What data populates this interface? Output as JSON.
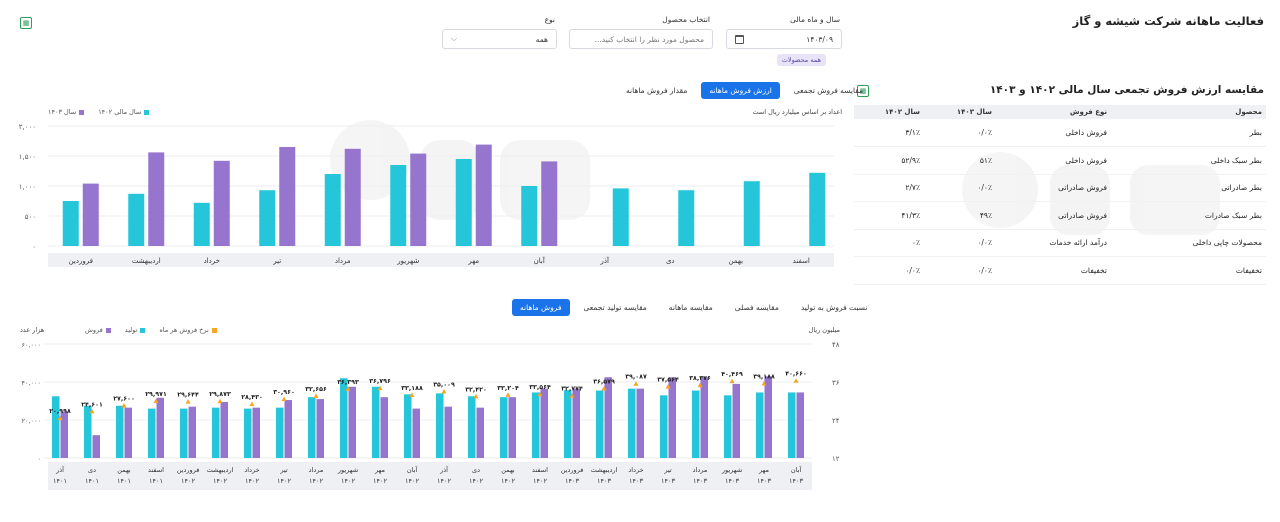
{
  "header": {
    "title": "فعالیت ماهانه شرکت شیشه و گاز"
  },
  "filters": {
    "year_label": "سال و ماه مالی",
    "year_value": "۱۴۰۳/۰۹",
    "product_label": "انتخاب محصول",
    "product_placeholder": "محصول مورد نظر را انتخاب کنید...",
    "type_label": "نوع",
    "type_value": "همه",
    "chip": "همه محصولات"
  },
  "table_section": {
    "title": "مقایسه ارزش فروش تجمعی سال مالی ۱۴۰۲ و ۱۴۰۳",
    "columns": [
      "محصول",
      "نوع فروش",
      "سال ۱۴۰۳",
      "سال ۱۴۰۲"
    ],
    "rows": [
      [
        "بطر",
        "فروش داخلی",
        "۰/۰٪",
        "۳/۱٪"
      ],
      [
        "بطر سبک داخلی",
        "فروش داخلی",
        "۵۱٪",
        "۵۲/۹٪"
      ],
      [
        "بطر صادراتی",
        "فروش صادراتی",
        "۰/۰٪",
        "۲/۷٪"
      ],
      [
        "بطر سبک صادرات",
        "فروش صادراتی",
        "۴۹٪",
        "۴۱/۳٪"
      ],
      [
        "محصولات چاپی داخلی",
        "درآمد ارائه خدمات",
        "۰/۰٪",
        "۰٪"
      ],
      [
        "تخفیفات",
        "تخفیفات",
        "۰/۰٪",
        "۰/۰٪"
      ]
    ]
  },
  "chart1_tabs": [
    "مقدار فروش ماهانه",
    "ارزش فروش ماهانه",
    "مقایسه فروش تجمعی"
  ],
  "chart1_legend": [
    "سال ۱۴۰۳",
    "سال مالی ۱۴۰۲"
  ],
  "chart1_note": "اعداد بر اساس میلیارد ریال است",
  "chart2_tabs": [
    "فروش ماهانه",
    "مقایسه تولید تجمعی",
    "مقایسه ماهانه",
    "مقایسه فصلی",
    "نسبت فروش به تولید"
  ],
  "chart2_legend": [
    "فروش",
    "تولید",
    "نرخ فروش هر ماه"
  ],
  "chart2_left_unit": "هزار عدد",
  "chart2_right_unit": "میلیون ریال",
  "colors": {
    "teal": "#26c6da",
    "purple": "#9575cd",
    "orange": "#f5a623",
    "accent": "#1a73e8"
  },
  "chart_data": [
    {
      "type": "bar",
      "categories": [
        "فروردین",
        "اردیبهشت",
        "خرداد",
        "تیر",
        "مرداد",
        "شهریور",
        "مهر",
        "آبان",
        "آذر",
        "دی",
        "بهمن",
        "اسفند"
      ],
      "series": [
        {
          "name": "سال مالی ۱۴۰۲",
          "values": [
            750,
            870,
            720,
            930,
            1200,
            1350,
            1450,
            1000,
            960,
            930,
            1080,
            1220
          ]
        },
        {
          "name": "سال ۱۴۰۳",
          "values": [
            1040,
            1560,
            1420,
            1650,
            1620,
            1540,
            1690,
            1410,
            null,
            null,
            null,
            null
          ]
        }
      ],
      "yticks": [
        "۰",
        "۵۰۰",
        "۱,۰۰۰",
        "۱,۵۰۰",
        "۲,۰۰۰"
      ],
      "ylim": [
        0,
        2000
      ]
    },
    {
      "type": "bar",
      "categories": [
        [
          "آبان",
          "۱۴۰۳"
        ],
        [
          "مهر",
          "۱۴۰۳"
        ],
        [
          "شهریور",
          "۱۴۰۳"
        ],
        [
          "مرداد",
          "۱۴۰۳"
        ],
        [
          "تیر",
          "۱۴۰۳"
        ],
        [
          "خرداد",
          "۱۴۰۳"
        ],
        [
          "اردیبهشت",
          "۱۴۰۳"
        ],
        [
          "فروردین",
          "۱۴۰۳"
        ],
        [
          "اسفند",
          "۱۴۰۲"
        ],
        [
          "بهمن",
          "۱۴۰۲"
        ],
        [
          "دی",
          "۱۴۰۲"
        ],
        [
          "آذر",
          "۱۴۰۲"
        ],
        [
          "آبان",
          "۱۴۰۲"
        ],
        [
          "مهر",
          "۱۴۰۲"
        ],
        [
          "شهریور",
          "۱۴۰۲"
        ],
        [
          "مرداد",
          "۱۴۰۲"
        ],
        [
          "تیر",
          "۱۴۰۲"
        ],
        [
          "خرداد",
          "۱۴۰۲"
        ],
        [
          "اردیبهشت",
          "۱۴۰۲"
        ],
        [
          "فروردین",
          "۱۴۰۲"
        ],
        [
          "اسفند",
          "۱۴۰۱"
        ],
        [
          "بهمن",
          "۱۴۰۱"
        ],
        [
          "دی",
          "۱۴۰۱"
        ],
        [
          "آذر",
          "۱۴۰۱"
        ]
      ],
      "series": [
        {
          "name": "تولید",
          "values": [
            34500,
            34500,
            33000,
            35500,
            33000,
            36500,
            35500,
            35700,
            34500,
            32000,
            32500,
            34000,
            33500,
            37500,
            42000,
            32000,
            26500,
            26000,
            26500,
            26000,
            26000,
            27500,
            27500,
            32500
          ]
        },
        {
          "name": "فروش",
          "values": [
            34500,
            43000,
            39000,
            42500,
            42500,
            36500,
            42500,
            36500,
            36500,
            32000,
            26500,
            27000,
            26000,
            32000,
            37500,
            31000,
            30500,
            26500,
            29500,
            27000,
            31700,
            26500,
            12000,
            24500
          ]
        },
        {
          "name": "نرخ فروش هر ماه",
          "values": [
            40660,
            39188,
            40469,
            38376,
            37564,
            39087,
            36579,
            32774,
            33564,
            33204,
            32420,
            35009,
            33188,
            36796,
            36393,
            32656,
            30960,
            28430,
            29873,
            29644,
            29971,
            27600,
            24601,
            20998
          ]
        }
      ],
      "value_labels": [
        "۴۰,۶۶۰",
        "۳۹,۱۸۸",
        "۴۰,۴۶۹",
        "۳۸,۳۷۶",
        "۳۷,۵۶۴",
        "۳۹,۰۸۷",
        "۳۶,۵۷۹",
        "۳۲,۷۷۴",
        "۳۳,۵۶۴",
        "۳۳,۲۰۴",
        "۳۲,۴۲۰",
        "۳۵,۰۰۹",
        "۳۳,۱۸۸",
        "۳۶,۷۹۶",
        "۳۶,۳۹۳",
        "۳۲,۶۵۶",
        "۳۰,۹۶۰",
        "۲۸,۴۳۰",
        "۲۹,۸۷۳",
        "۲۹,۶۴۴",
        "۲۹,۹۷۱",
        "۲۷,۶۰۰",
        "۲۴,۶۰۱",
        "۲۰,۹۹۸"
      ],
      "left_ticks": [
        "۰",
        "۲۰,۰۰۰",
        "۴۰,۰۰۰",
        "۶۰,۰۰۰"
      ],
      "right_ticks": [
        "۱۲",
        "۲۴",
        "۳۶",
        "۴۸"
      ],
      "ylim": [
        0,
        60000
      ]
    }
  ]
}
